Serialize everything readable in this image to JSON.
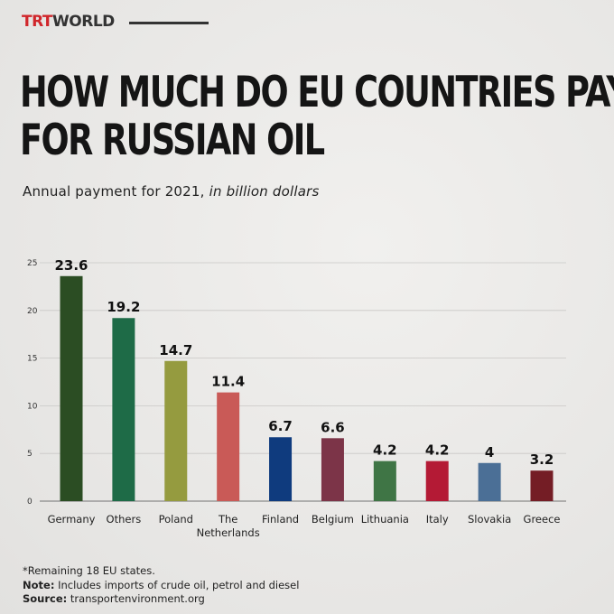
{
  "brand": {
    "part1": "TRT",
    "part2": "WORLD"
  },
  "title_line1": "HOW MUCH DO EU COUNTRIES PAY",
  "title_line2": "FOR RUSSIAN OIL",
  "subtitle_main": "Annual payment for 2021, ",
  "subtitle_italic": "in billion dollars",
  "footer": {
    "remaining": "*Remaining 18 EU states.",
    "note_label": "Note:",
    "note_text": " Includes imports of crude oil, petrol and diesel",
    "source_label": "Source:",
    "source_text": " transportenvironment.org"
  },
  "chart_data": {
    "type": "bar",
    "title": "HOW MUCH DO EU COUNTRIES PAY FOR RUSSIAN OIL",
    "subtitle": "Annual payment for 2021, in billion dollars",
    "categories": [
      "Germany",
      "Others",
      "Poland",
      "The Netherlands",
      "Finland",
      "Belgium",
      "Lithuania",
      "Italy",
      "Slovakia",
      "Greece"
    ],
    "category_lines": [
      [
        "Germany"
      ],
      [
        "Others"
      ],
      [
        "Poland"
      ],
      [
        "The",
        "Netherlands"
      ],
      [
        "Finland"
      ],
      [
        "Belgium"
      ],
      [
        "Lithuania"
      ],
      [
        "Italy"
      ],
      [
        "Slovakia"
      ],
      [
        "Greece"
      ]
    ],
    "values": [
      23.6,
      19.2,
      14.7,
      11.4,
      6.7,
      6.6,
      4.2,
      4.2,
      4,
      3.2
    ],
    "value_labels": [
      "23.6",
      "19.2",
      "14.7",
      "11.4",
      "6.7",
      "6.6",
      "4.2",
      "4.2",
      "4",
      "3.2"
    ],
    "colors": [
      "#2b4d23",
      "#1e6b47",
      "#959b3f",
      "#c95a57",
      "#0f3b7e",
      "#7c3448",
      "#3f7545",
      "#b41a35",
      "#4b6f96",
      "#741d25"
    ],
    "ylim": [
      0,
      25
    ],
    "yticks": [
      0,
      5,
      10,
      15,
      20,
      25
    ],
    "grid": true,
    "legend": "none"
  }
}
